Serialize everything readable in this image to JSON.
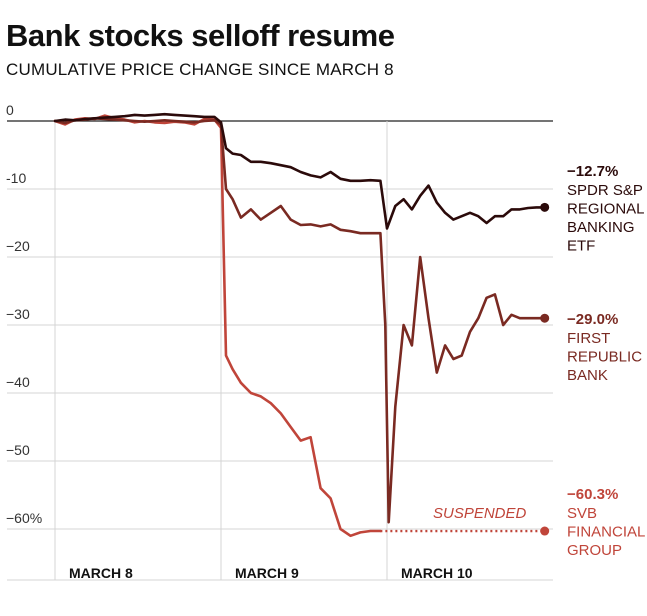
{
  "header": {
    "title": "Bank stocks selloff resume",
    "subtitle": "CUMULATIVE PRICE CHANGE SINCE MARCH 8"
  },
  "chart_data": {
    "type": "line",
    "title": "Bank stocks selloff resume",
    "subtitle": "CUMULATIVE PRICE CHANGE SINCE MARCH 8",
    "ylim": [
      -65,
      0
    ],
    "yticks": [
      0,
      -10,
      -20,
      -30,
      -40,
      -50,
      -60
    ],
    "ytick_labels": [
      "0",
      "-10",
      "−20",
      "−30",
      "−40",
      "−50",
      "−60%"
    ],
    "x_days": [
      "MARCH 8",
      "MARCH 9",
      "MARCH 10"
    ],
    "x_range": [
      0,
      3
    ],
    "grid": "horizontal",
    "annotation": "SUSPENDED",
    "series": [
      {
        "name": "SPDR S&P REGIONAL BANKING ETF",
        "label_lines": [
          "SPDR S&P",
          "REGIONAL",
          "BANKING",
          "ETF"
        ],
        "end_label": "−12.7%",
        "color": "#2b0a0a",
        "x": [
          0,
          0.06,
          0.12,
          0.18,
          0.24,
          0.3,
          0.36,
          0.42,
          0.48,
          0.54,
          0.6,
          0.66,
          0.72,
          0.78,
          0.84,
          0.9,
          0.96,
          1.0,
          1.03,
          1.07,
          1.12,
          1.18,
          1.24,
          1.3,
          1.36,
          1.42,
          1.48,
          1.54,
          1.6,
          1.66,
          1.72,
          1.78,
          1.84,
          1.9,
          1.96,
          2.0,
          2.05,
          2.1,
          2.15,
          2.2,
          2.25,
          2.3,
          2.35,
          2.4,
          2.45,
          2.5,
          2.55,
          2.6,
          2.65,
          2.7,
          2.75,
          2.8,
          2.85,
          2.9,
          2.95
        ],
        "y": [
          0,
          0.2,
          0.1,
          0.3,
          0.4,
          0.5,
          0.6,
          0.7,
          0.9,
          0.8,
          0.9,
          1.0,
          0.9,
          0.8,
          0.7,
          0.6,
          0.6,
          -0.2,
          -4.0,
          -4.8,
          -5.0,
          -6.0,
          -6.0,
          -6.2,
          -6.5,
          -6.8,
          -7.5,
          -8.0,
          -8.3,
          -7.5,
          -8.5,
          -8.8,
          -8.8,
          -8.7,
          -8.8,
          -15.8,
          -12.5,
          -11.5,
          -13.0,
          -11.0,
          -9.5,
          -12.0,
          -13.5,
          -14.5,
          -14.0,
          -13.5,
          -14.0,
          -15.0,
          -14.0,
          -14.0,
          -13.0,
          -13.0,
          -12.8,
          -12.7,
          -12.7
        ]
      },
      {
        "name": "FIRST REPUBLIC BANK",
        "label_lines": [
          "FIRST",
          "REPUBLIC",
          "BANK"
        ],
        "end_label": "−29.0%",
        "color": "#7a2a22",
        "x": [
          0,
          0.06,
          0.12,
          0.18,
          0.24,
          0.3,
          0.36,
          0.42,
          0.48,
          0.54,
          0.6,
          0.66,
          0.72,
          0.78,
          0.84,
          0.9,
          0.96,
          1.0,
          1.03,
          1.07,
          1.12,
          1.18,
          1.24,
          1.3,
          1.36,
          1.42,
          1.48,
          1.54,
          1.6,
          1.66,
          1.72,
          1.78,
          1.84,
          1.9,
          1.96,
          1.99,
          2.01,
          2.05,
          2.1,
          2.15,
          2.2,
          2.25,
          2.3,
          2.35,
          2.4,
          2.45,
          2.5,
          2.55,
          2.6,
          2.65,
          2.7,
          2.75,
          2.8,
          2.85,
          2.9,
          2.95
        ],
        "y": [
          0,
          -0.3,
          0.1,
          0.2,
          0.4,
          0.3,
          0.2,
          0.1,
          0.0,
          -0.1,
          0.0,
          0.1,
          0.0,
          -0.1,
          -0.2,
          0.0,
          0.1,
          -0.5,
          -10.0,
          -11.5,
          -14.2,
          -13.0,
          -14.5,
          -13.5,
          -12.5,
          -14.5,
          -15.3,
          -15.2,
          -15.5,
          -15.2,
          -16.0,
          -16.2,
          -16.5,
          -16.5,
          -16.5,
          -30.0,
          -59.0,
          -42.0,
          -30.0,
          -33.0,
          -20.0,
          -29.0,
          -37.0,
          -33.0,
          -35.0,
          -34.5,
          -31.0,
          -29.0,
          -26.0,
          -25.5,
          -30.0,
          -28.5,
          -29.0,
          -29.0,
          -29.0,
          -29.0
        ]
      },
      {
        "name": "SVB FINANCIAL GROUP",
        "label_lines": [
          "SVB",
          "FINANCIAL",
          "GROUP"
        ],
        "end_label": "−60.3%",
        "color": "#c0453a",
        "x": [
          0,
          0.06,
          0.12,
          0.18,
          0.24,
          0.3,
          0.36,
          0.42,
          0.48,
          0.54,
          0.6,
          0.66,
          0.72,
          0.78,
          0.84,
          0.9,
          0.96,
          1.0,
          1.03,
          1.07,
          1.12,
          1.18,
          1.24,
          1.3,
          1.36,
          1.42,
          1.48,
          1.54,
          1.6,
          1.66,
          1.72,
          1.78,
          1.84,
          1.9,
          1.96
        ],
        "y": [
          0,
          -0.5,
          0.2,
          0.4,
          0.3,
          0.8,
          0.4,
          0.2,
          -0.2,
          0.0,
          -0.2,
          -0.3,
          -0.1,
          -0.2,
          -0.5,
          0.3,
          0.2,
          -1.0,
          -34.5,
          -36.5,
          -38.5,
          -40.0,
          -40.5,
          -41.5,
          -43.0,
          -45.0,
          -47.0,
          -46.5,
          -54.0,
          -55.5,
          -60.0,
          -61.0,
          -60.5,
          -60.3,
          -60.3
        ],
        "suspended_x": [
          1.96,
          2.95
        ]
      }
    ]
  }
}
